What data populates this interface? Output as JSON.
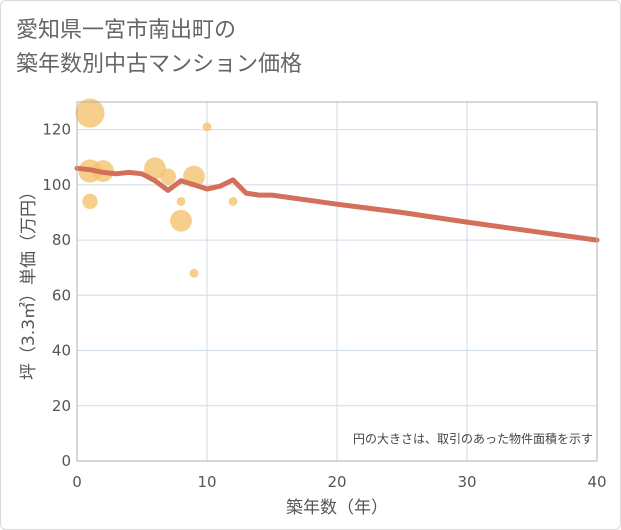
{
  "title": {
    "line1": "愛知県一宮市南出町の",
    "line2": "築年数別中古マンション価格"
  },
  "colors": {
    "bubble": "#f5c26b",
    "trend": "#d4705a",
    "grid": "#cfdbe6",
    "plot_border": "#b0b0b0"
  },
  "chart_data": {
    "type": "scatter",
    "xlabel": "築年数（年）",
    "ylabel": "坪（3.3㎡）単価（万円）",
    "xlim": [
      0,
      40
    ],
    "ylim": [
      0,
      130
    ],
    "x_ticks": [
      0,
      10,
      20,
      30,
      40
    ],
    "y_ticks": [
      0,
      20,
      40,
      60,
      80,
      100,
      120
    ],
    "grid": true,
    "annotation": "円の大きさは、取引のあった物件面積を示す",
    "bubbles": [
      {
        "x": 1,
        "y": 126,
        "size": 3.2
      },
      {
        "x": 1,
        "y": 105,
        "size": 2.4
      },
      {
        "x": 2,
        "y": 105,
        "size": 2.2
      },
      {
        "x": 1,
        "y": 94,
        "size": 1.3
      },
      {
        "x": 6,
        "y": 106,
        "size": 2.2
      },
      {
        "x": 7,
        "y": 103,
        "size": 1.4
      },
      {
        "x": 9,
        "y": 103,
        "size": 2.2
      },
      {
        "x": 8,
        "y": 87,
        "size": 2.2
      },
      {
        "x": 8,
        "y": 94,
        "size": 0.4
      },
      {
        "x": 10,
        "y": 121,
        "size": 0.4
      },
      {
        "x": 12,
        "y": 94,
        "size": 0.4
      },
      {
        "x": 9,
        "y": 68,
        "size": 0.4
      }
    ],
    "trend_line": {
      "x": [
        0,
        1,
        2,
        3,
        4,
        5,
        6,
        7,
        8,
        9,
        10,
        11,
        12,
        13,
        14,
        15,
        20,
        25,
        30,
        35,
        40
      ],
      "y": [
        106,
        105.5,
        104.5,
        104,
        104.5,
        104,
        101.5,
        98,
        101.5,
        100,
        98.5,
        99.5,
        101.8,
        97,
        96.3,
        96.3,
        93,
        90,
        86.5,
        83.2,
        80
      ]
    }
  }
}
